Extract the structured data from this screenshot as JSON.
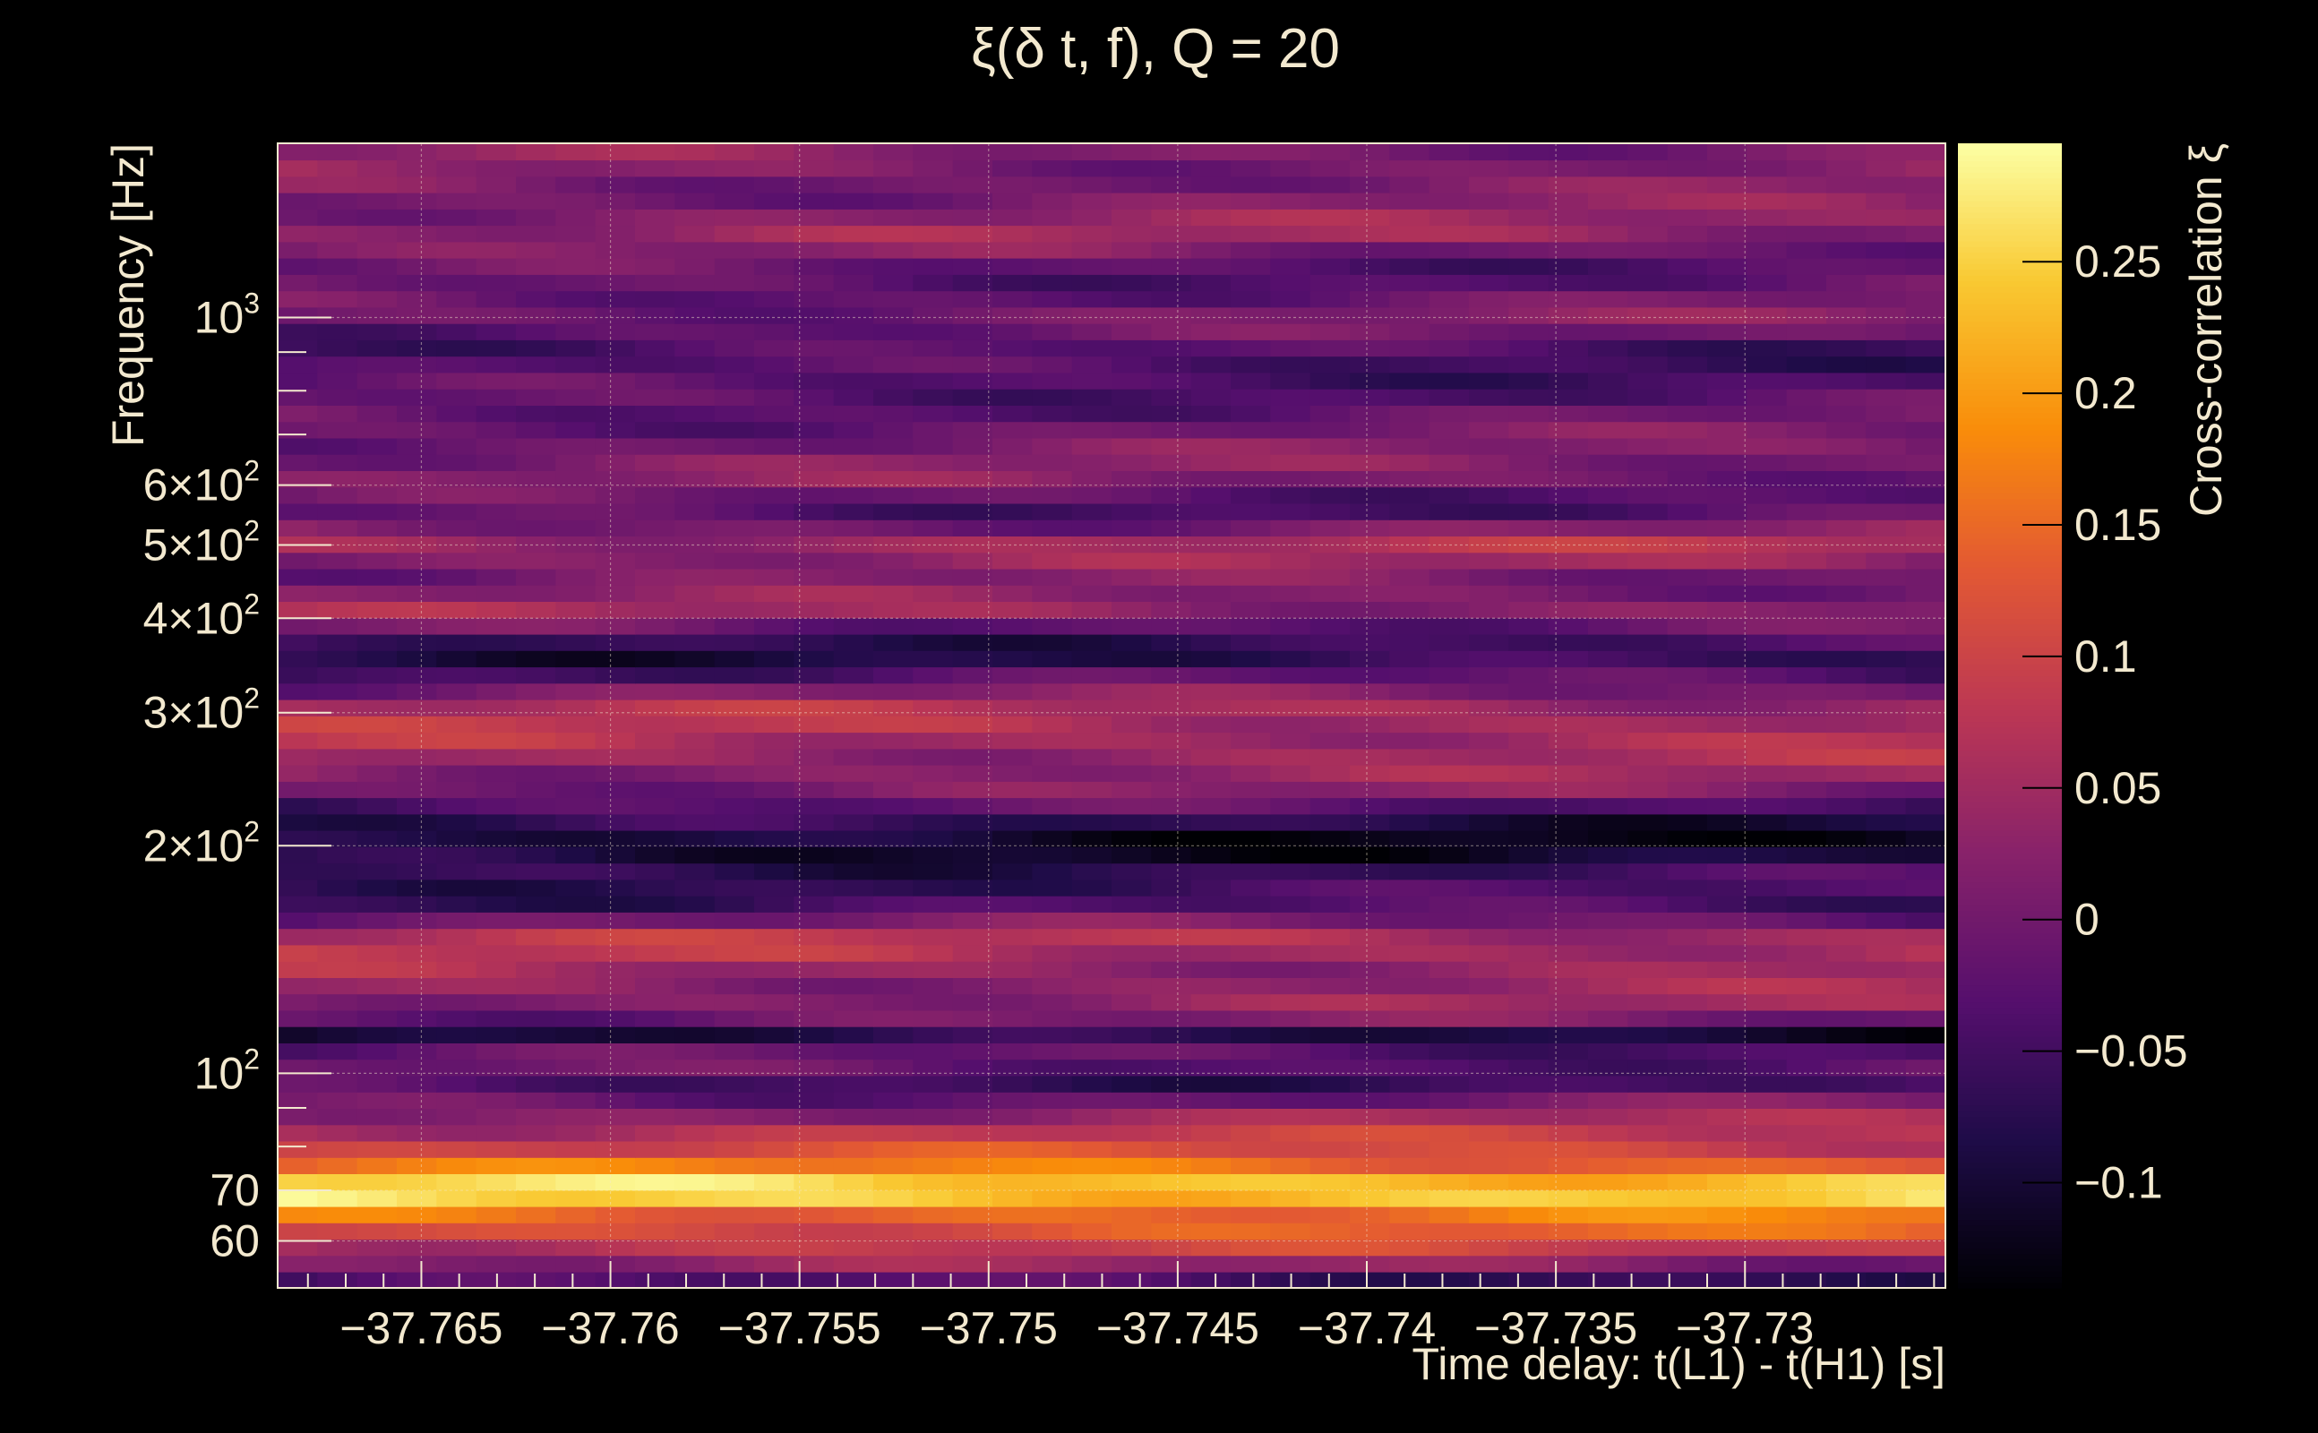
{
  "chart_data": {
    "type": "heatmap",
    "title": "ξ(δ t, f), Q = 20",
    "xlabel": "Time delay: t(L1) - t(H1) [s]",
    "ylabel": "Frequency [Hz]",
    "colorbar_label": "Cross-correlation ξ",
    "xlim": [
      -37.7688,
      -37.7247
    ],
    "ylim": [
      52,
      1700
    ],
    "yscale": "log",
    "grid": true,
    "x_ticks": [
      -37.765,
      -37.76,
      -37.755,
      -37.75,
      -37.745,
      -37.74,
      -37.735,
      -37.73
    ],
    "x_tick_labels": [
      "−37.765",
      "−37.76",
      "−37.755",
      "−37.75",
      "−37.745",
      "−37.74",
      "−37.735",
      "−37.73"
    ],
    "y_ticks": [
      {
        "value": 60,
        "label": "60"
      },
      {
        "value": 70,
        "label": "70"
      },
      {
        "value": 100,
        "mant": "10",
        "exp": "2"
      },
      {
        "value": 200,
        "mant": "2×10",
        "exp": "2"
      },
      {
        "value": 300,
        "mant": "3×10",
        "exp": "2"
      },
      {
        "value": 400,
        "mant": "4×10",
        "exp": "2"
      },
      {
        "value": 500,
        "mant": "5×10",
        "exp": "2"
      },
      {
        "value": 600,
        "mant": "6×10",
        "exp": "2"
      },
      {
        "value": 1000,
        "mant": "10",
        "exp": "3"
      }
    ],
    "colorbar": {
      "range": [
        -0.14,
        0.295
      ],
      "ticks": [
        -0.1,
        -0.05,
        0,
        0.05,
        0.1,
        0.15,
        0.2,
        0.25
      ],
      "tick_labels": [
        "−0.1",
        "−0.05",
        "0",
        "0.05",
        "0.1",
        "0.15",
        "0.2",
        "0.25"
      ],
      "colormap": "inferno"
    },
    "band_profile": [
      {
        "f": 53,
        "v": -0.06
      },
      {
        "f": 57,
        "v": 0.05
      },
      {
        "f": 61,
        "v": 0.12
      },
      {
        "f": 65,
        "v": 0.16
      },
      {
        "f": 68,
        "v": 0.24
      },
      {
        "f": 70,
        "v": 0.29
      },
      {
        "f": 73,
        "v": 0.22
      },
      {
        "f": 77,
        "v": 0.12
      },
      {
        "f": 83,
        "v": 0.08
      },
      {
        "f": 90,
        "v": 0.02
      },
      {
        "f": 97,
        "v": -0.05
      },
      {
        "f": 105,
        "v": 0.0
      },
      {
        "f": 113,
        "v": -0.1
      },
      {
        "f": 120,
        "v": 0.03
      },
      {
        "f": 135,
        "v": 0.04
      },
      {
        "f": 150,
        "v": 0.08
      },
      {
        "f": 165,
        "v": -0.05
      },
      {
        "f": 185,
        "v": -0.06
      },
      {
        "f": 200,
        "v": -0.12
      },
      {
        "f": 215,
        "v": -0.08
      },
      {
        "f": 240,
        "v": 0.02
      },
      {
        "f": 270,
        "v": 0.06
      },
      {
        "f": 300,
        "v": 0.07
      },
      {
        "f": 330,
        "v": -0.02
      },
      {
        "f": 360,
        "v": -0.09
      },
      {
        "f": 410,
        "v": 0.04
      },
      {
        "f": 450,
        "v": 0.0
      },
      {
        "f": 500,
        "v": 0.06
      },
      {
        "f": 560,
        "v": -0.04
      },
      {
        "f": 620,
        "v": 0.02
      },
      {
        "f": 700,
        "v": 0.0
      },
      {
        "f": 800,
        "v": -0.03
      },
      {
        "f": 900,
        "v": -0.05
      },
      {
        "f": 1000,
        "v": 0.01
      },
      {
        "f": 1150,
        "v": -0.03
      },
      {
        "f": 1300,
        "v": 0.04
      },
      {
        "f": 1450,
        "v": 0.01
      },
      {
        "f": 1600,
        "v": 0.02
      }
    ]
  }
}
